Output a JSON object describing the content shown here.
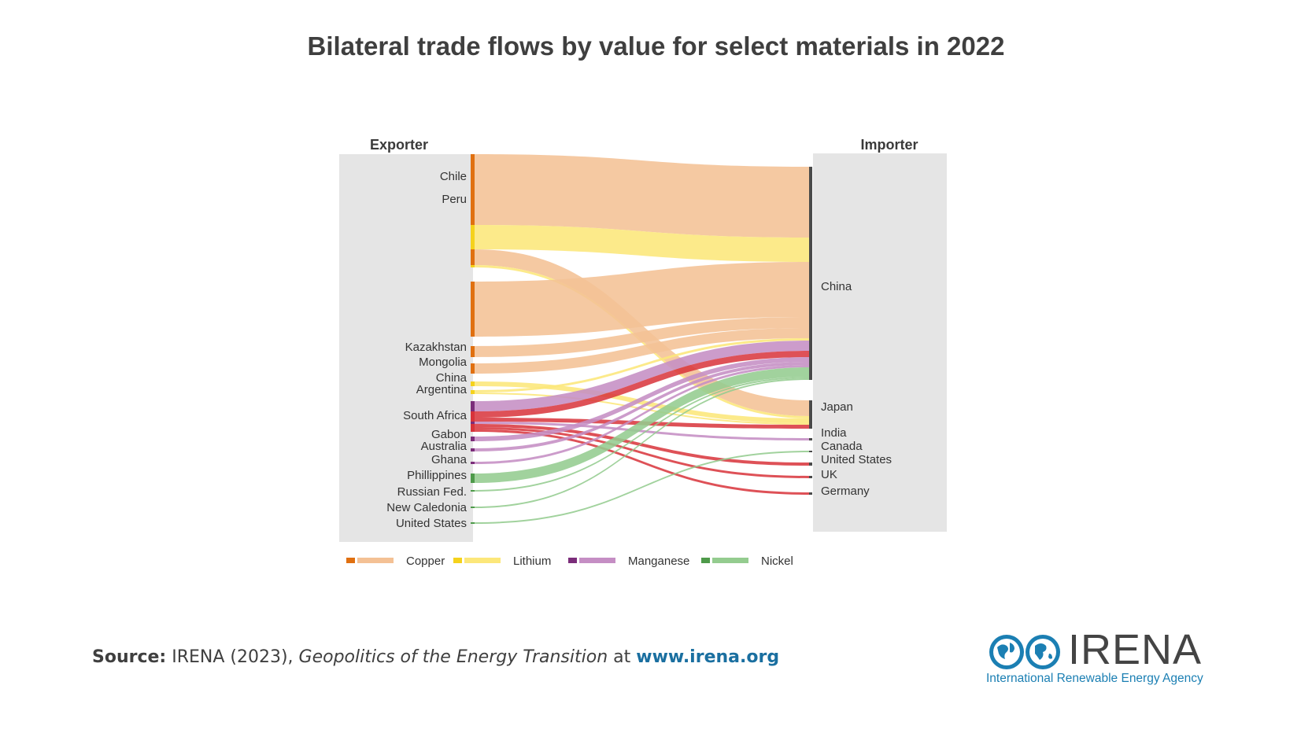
{
  "title": "Bilateral trade flows by value for select materials in 2022",
  "headers": {
    "exporter": "Exporter",
    "importer": "Importer"
  },
  "colors": {
    "Copper": {
      "node": "#e07010",
      "flow": "#f4c195"
    },
    "Lithium": {
      "node": "#f5d21c",
      "flow": "#fce77a"
    },
    "Manganese": {
      "node": "#7b2d7a",
      "flow": "#c58ec4"
    },
    "Nickel": {
      "node": "#4e9a4a",
      "flow": "#94cc8f"
    },
    "SouthAfricaRed": "#d8333a"
  },
  "legend": [
    {
      "name": "Copper",
      "label": "Copper"
    },
    {
      "name": "Lithium",
      "label": "Lithium"
    },
    {
      "name": "Manganese",
      "label": "Manganese"
    },
    {
      "name": "Nickel",
      "label": "Nickel"
    }
  ],
  "exporters": [
    "Chile",
    "Peru",
    "Kazakhstan",
    "Mongolia",
    "China",
    "Argentina",
    "South Africa",
    "Gabon",
    "Australia",
    "Ghana",
    "Phillippines",
    "Russian Fed.",
    "New Caledonia",
    "United States"
  ],
  "importers": [
    "China",
    "Japan",
    "India",
    "Canada",
    "United States",
    "UK",
    "Germany"
  ],
  "flows": [
    {
      "from": "Chile",
      "to": "China",
      "material": "Copper",
      "value": 90
    },
    {
      "from": "Chile",
      "to": "China",
      "material": "Lithium",
      "value": 31
    },
    {
      "from": "Chile",
      "to": "Japan",
      "material": "Copper",
      "value": 20
    },
    {
      "from": "Chile",
      "to": "Japan",
      "material": "Lithium",
      "value": 3
    },
    {
      "from": "Peru",
      "to": "China",
      "material": "Copper",
      "value": 70
    },
    {
      "from": "Kazakhstan",
      "to": "China",
      "material": "Copper",
      "value": 14
    },
    {
      "from": "Mongolia",
      "to": "China",
      "material": "Copper",
      "value": 13
    },
    {
      "from": "China",
      "to": "Japan",
      "material": "Lithium",
      "value": 6
    },
    {
      "from": "Argentina",
      "to": "China",
      "material": "Lithium",
      "value": 3
    },
    {
      "from": "Argentina",
      "to": "Japan",
      "material": "Lithium",
      "value": 2
    },
    {
      "from": "South Africa",
      "to": "China",
      "material": "Manganese",
      "value": 13
    },
    {
      "from": "South Africa",
      "to": "China",
      "material": "South Africa",
      "value": 8
    },
    {
      "from": "South Africa",
      "to": "Japan",
      "material": "South Africa",
      "value": 5
    },
    {
      "from": "South Africa",
      "to": "India",
      "material": "Manganese",
      "value": 3
    },
    {
      "from": "South Africa",
      "to": "United States",
      "material": "South Africa",
      "value": 4
    },
    {
      "from": "South Africa",
      "to": "UK",
      "material": "South Africa",
      "value": 3
    },
    {
      "from": "South Africa",
      "to": "Germany",
      "material": "South Africa",
      "value": 3
    },
    {
      "from": "Gabon",
      "to": "China",
      "material": "Manganese",
      "value": 6
    },
    {
      "from": "Australia",
      "to": "China",
      "material": "Manganese",
      "value": 4
    },
    {
      "from": "Ghana",
      "to": "China",
      "material": "Manganese",
      "value": 3
    },
    {
      "from": "Phillippines",
      "to": "China",
      "material": "Nickel",
      "value": 12
    },
    {
      "from": "Russian Fed.",
      "to": "China",
      "material": "Nickel",
      "value": 2
    },
    {
      "from": "New Caledonia",
      "to": "China",
      "material": "Nickel",
      "value": 2
    },
    {
      "from": "United States",
      "to": "Canada",
      "material": "Nickel",
      "value": 2
    }
  ],
  "source": {
    "label": "Source:",
    "text1": " IRENA (2023), ",
    "italic": "Geopolitics of the Energy Transition",
    "text2": " at ",
    "url": "www.irena.org"
  },
  "logo": {
    "word": "IRENA",
    "subtitle": "International Renewable Energy Agency"
  }
}
